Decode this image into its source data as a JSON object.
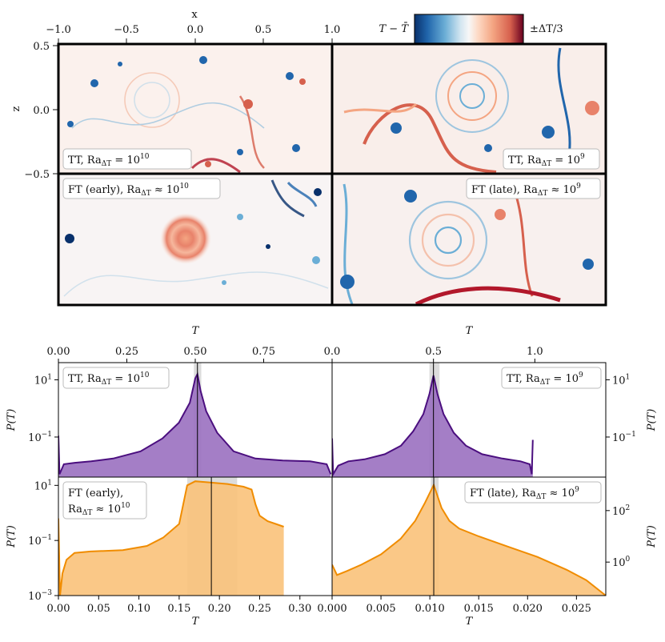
{
  "figure": {
    "colorbar": {
      "label_left": "T − T̄",
      "label_right": "±ΔT/3",
      "colors": [
        "#08306b",
        "#2166ac",
        "#4393c3",
        "#92c5de",
        "#f7f7f7",
        "#f4a582",
        "#d6604d",
        "#b2182b",
        "#67001f"
      ]
    },
    "snapshots": {
      "xlabel": "x",
      "zlabel": "z",
      "x_ticks": [
        "−1.0",
        "−0.5",
        "0.0",
        "0.5",
        "1.0"
      ],
      "z_ticks": [
        "0.5",
        "0.0",
        "−0.5"
      ],
      "panels": [
        {
          "label": "TT, Ra",
          "sub": "ΔT",
          "rel": " = 10",
          "exp": "10"
        },
        {
          "label": "TT, Ra",
          "sub": "ΔT",
          "rel": " = 10",
          "exp": "9"
        },
        {
          "label": "FT (early), Ra",
          "sub": "ΔT",
          "rel": " ≈ 10",
          "exp": "10"
        },
        {
          "label": "FT (late), Ra",
          "sub": "ΔT",
          "rel": " ≈ 10",
          "exp": "9"
        }
      ]
    }
  },
  "chart_data": [
    {
      "type": "area",
      "panel": "TT, Ra_ΔT = 10^10",
      "xlabel": "T",
      "ylabel": "P(T)",
      "xlim": [
        0,
        1
      ],
      "ylim_log10": [
        -2.4,
        1.6
      ],
      "x_ticks": [
        0,
        0.25,
        0.5,
        0.75
      ],
      "x_tick_labels": [
        "0.00",
        "0.25",
        "0.50",
        "0.75"
      ],
      "y_ticks_log10": [
        1,
        -1
      ],
      "y_tick_labels": [
        "10",
        "10"
      ],
      "y_tick_exps": [
        "1",
        "−1"
      ],
      "color": "#4b0f7f",
      "fill": "#9a70c0",
      "mean": 0.508,
      "band": [
        0.495,
        0.522
      ],
      "x": [
        0,
        0.004,
        0.02,
        0.06,
        0.12,
        0.2,
        0.3,
        0.38,
        0.44,
        0.48,
        0.5,
        0.508,
        0.52,
        0.54,
        0.58,
        0.64,
        0.72,
        0.82,
        0.92,
        0.98,
        0.995
      ],
      "y": [
        -0.95,
        -2.3,
        -1.95,
        -1.9,
        -1.85,
        -1.75,
        -1.5,
        -1.05,
        -0.5,
        0.2,
        1.05,
        1.2,
        0.6,
        -0.1,
        -0.85,
        -1.5,
        -1.75,
        -1.82,
        -1.85,
        -1.95,
        -2.3
      ],
      "legend": "TT, Ra",
      "legend_sub": "ΔT",
      "legend_rel": " = 10",
      "legend_exp": "10"
    },
    {
      "type": "area",
      "panel": "TT, Ra_ΔT = 10^9",
      "xlabel": "T",
      "ylabel": "P(T)",
      "xlim": [
        0,
        1.35
      ],
      "ylim_log10": [
        -2.4,
        1.6
      ],
      "x_ticks": [
        0,
        0.5,
        1.0
      ],
      "x_tick_labels": [
        "0.0",
        "0.5",
        "1.0"
      ],
      "y_ticks_log10": [
        1,
        -1
      ],
      "y_tick_labels": [
        "10",
        "10"
      ],
      "y_tick_exps": [
        "1",
        "−1"
      ],
      "color": "#4b0f7f",
      "fill": "#9a70c0",
      "mean": 0.5,
      "band": [
        0.48,
        0.53
      ],
      "x": [
        0,
        0.005,
        0.03,
        0.08,
        0.16,
        0.26,
        0.34,
        0.4,
        0.45,
        0.48,
        0.5,
        0.52,
        0.55,
        0.6,
        0.66,
        0.74,
        0.84,
        0.93,
        0.975,
        0.985,
        0.99
      ],
      "y": [
        -1.05,
        -2.3,
        -2.0,
        -1.85,
        -1.78,
        -1.6,
        -1.3,
        -0.8,
        -0.2,
        0.5,
        1.15,
        0.5,
        -0.2,
        -0.85,
        -1.3,
        -1.6,
        -1.75,
        -1.85,
        -1.95,
        -2.3,
        -1.1
      ],
      "legend": "TT, Ra",
      "legend_sub": "ΔT",
      "legend_rel": " = 10",
      "legend_exp": "9"
    },
    {
      "type": "area",
      "panel": "FT (early), Ra_ΔT ≈ 10^10",
      "xlabel": "T",
      "ylabel": "P(T)",
      "xlim": [
        0,
        0.34
      ],
      "ylim_log10": [
        -3,
        1.3
      ],
      "x_ticks": [
        0,
        0.05,
        0.1,
        0.15,
        0.2,
        0.25,
        0.3
      ],
      "x_tick_labels": [
        "0.00",
        "0.05",
        "0.10",
        "0.15",
        "0.20",
        "0.25",
        "0.30"
      ],
      "y_ticks_log10": [
        1,
        -1,
        -3
      ],
      "y_tick_labels": [
        "10",
        "10",
        "10"
      ],
      "y_tick_exps": [
        "1",
        "−1",
        "−3"
      ],
      "color": "#f08c00",
      "fill": "#f9c27a",
      "mean": 0.19,
      "band": [
        0.16,
        0.222
      ],
      "x": [
        0,
        0.002,
        0.005,
        0.01,
        0.02,
        0.04,
        0.08,
        0.11,
        0.13,
        0.15,
        0.16,
        0.17,
        0.19,
        0.21,
        0.23,
        0.24,
        0.245,
        0.25,
        0.26,
        0.27,
        0.28
      ],
      "y": [
        -0.2,
        -3,
        -2.2,
        -1.7,
        -1.45,
        -1.4,
        -1.35,
        -1.2,
        -0.9,
        -0.4,
        1.0,
        1.15,
        1.1,
        1.05,
        0.95,
        0.85,
        0.3,
        -0.1,
        -0.3,
        -0.4,
        -0.5
      ],
      "legend": "FT (early),",
      "legend2": "Ra",
      "legend_sub": "ΔT",
      "legend_rel": " ≈ 10",
      "legend_exp": "10"
    },
    {
      "type": "area",
      "panel": "FT (late), Ra_ΔT ≈ 10^9",
      "xlabel": "T",
      "ylabel": "P(T)",
      "xlim": [
        0,
        0.028
      ],
      "ylim_log10": [
        -1.3,
        3.3
      ],
      "x_ticks": [
        0,
        0.005,
        0.01,
        0.015,
        0.02,
        0.025
      ],
      "x_tick_labels": [
        "0.000",
        "0.005",
        "0.010",
        "0.015",
        "0.020",
        "0.025"
      ],
      "y_ticks_log10": [
        2,
        0
      ],
      "y_tick_labels": [
        "10",
        "10"
      ],
      "y_tick_exps": [
        "2",
        "0"
      ],
      "color": "#f08c00",
      "fill": "#f9c27a",
      "mean": 0.0104,
      "band": [
        0.0101,
        0.0109
      ],
      "x": [
        0,
        0.0005,
        0.0015,
        0.003,
        0.005,
        0.007,
        0.0085,
        0.0095,
        0.0104,
        0.0112,
        0.012,
        0.013,
        0.015,
        0.018,
        0.021,
        0.024,
        0.026,
        0.028
      ],
      "y": [
        -0.1,
        -0.5,
        -0.35,
        -0.1,
        0.3,
        0.9,
        1.6,
        2.3,
        3.0,
        2.1,
        1.6,
        1.3,
        1.0,
        0.6,
        0.2,
        -0.3,
        -0.7,
        -1.3
      ],
      "legend": "FT (late), Ra",
      "legend_sub": "ΔT",
      "legend_rel": " ≈ 10",
      "legend_exp": "9"
    }
  ]
}
